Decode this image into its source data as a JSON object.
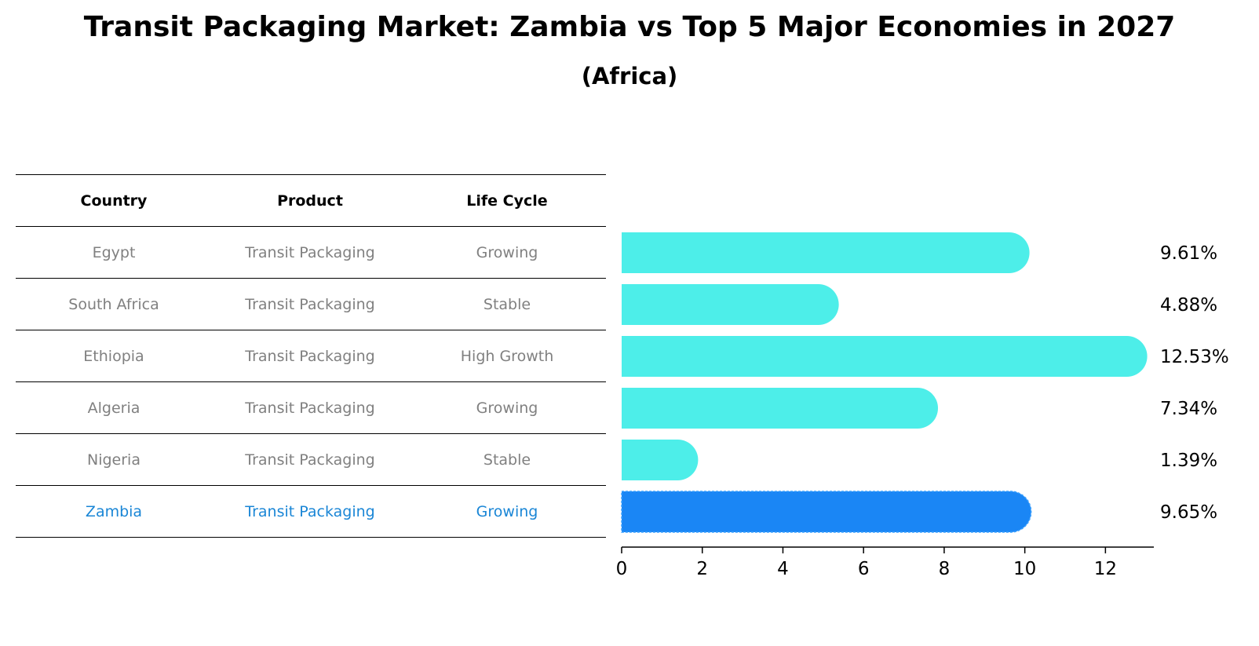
{
  "title": "Transit Packaging Market: Zambia vs Top 5 Major Economies in 2027",
  "subtitle": "(Africa)",
  "table": {
    "headers": [
      "Country",
      "Product",
      "Life Cycle"
    ],
    "rows": [
      {
        "country": "Egypt",
        "product": "Transit Packaging",
        "life_cycle": "Growing"
      },
      {
        "country": "South Africa",
        "product": "Transit Packaging",
        "life_cycle": "Stable"
      },
      {
        "country": "Ethiopia",
        "product": "Transit Packaging",
        "life_cycle": "High Growth"
      },
      {
        "country": "Algeria",
        "product": "Transit Packaging",
        "life_cycle": "Growing"
      },
      {
        "country": "Nigeria",
        "product": "Transit Packaging",
        "life_cycle": "Stable"
      },
      {
        "country": "Zambia",
        "product": "Transit Packaging",
        "life_cycle": "Growing"
      }
    ]
  },
  "colors": {
    "bar": "#4deee9",
    "highlight_bar": "#1a86f5",
    "highlight_text": "#1a86d6"
  },
  "chart_data": {
    "type": "bar",
    "orientation": "horizontal",
    "categories": [
      "Egypt",
      "South Africa",
      "Ethiopia",
      "Algeria",
      "Nigeria",
      "Zambia"
    ],
    "values": [
      9.61,
      4.88,
      12.53,
      7.34,
      1.39,
      9.65
    ],
    "value_labels": [
      "9.61%",
      "4.88%",
      "12.53%",
      "7.34%",
      "1.39%",
      "9.65%"
    ],
    "highlight": "Zambia",
    "xlim": [
      0,
      13.2
    ],
    "xticks": [
      0,
      2,
      4,
      6,
      8,
      10,
      12
    ],
    "grid": false
  }
}
